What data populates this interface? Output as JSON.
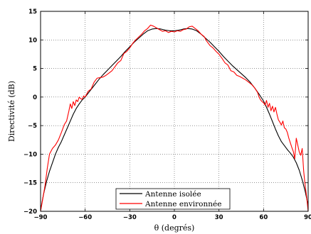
{
  "chart_data": {
    "type": "line",
    "xlabel": "θ (degrés)",
    "ylabel": "Directivité (dB)",
    "xlim": [
      -90,
      90
    ],
    "ylim": [
      -20,
      15
    ],
    "xticks": [
      -90,
      -60,
      -30,
      0,
      30,
      60,
      90
    ],
    "yticks": [
      -20,
      -15,
      -10,
      -5,
      0,
      5,
      10,
      15
    ],
    "grid": true,
    "legend_position": "bottom-center",
    "series": [
      {
        "name": "Antenne isolée",
        "color": "#000000",
        "x": [
          -90,
          -88,
          -86,
          -84,
          -82,
          -80,
          -78,
          -76,
          -74,
          -72,
          -70,
          -68,
          -66,
          -64,
          -62,
          -60,
          -57,
          -54,
          -51,
          -48,
          -45,
          -42,
          -39,
          -36,
          -33,
          -30,
          -27,
          -24,
          -21,
          -18,
          -15,
          -12,
          -9,
          -6,
          -3,
          0,
          3,
          6,
          9,
          12,
          15,
          18,
          21,
          24,
          27,
          30,
          33,
          36,
          39,
          42,
          45,
          48,
          51,
          54,
          57,
          60,
          62,
          64,
          66,
          68,
          70,
          72,
          74,
          76,
          78,
          80,
          82,
          84,
          86,
          88,
          90
        ],
        "y": [
          -19.8,
          -17.0,
          -14.8,
          -13.0,
          -11.5,
          -10.0,
          -8.8,
          -7.8,
          -6.6,
          -5.4,
          -4.2,
          -3.0,
          -2.0,
          -1.2,
          -0.5,
          0.0,
          1.0,
          2.0,
          3.0,
          3.9,
          4.7,
          5.5,
          6.3,
          7.1,
          8.0,
          8.8,
          9.6,
          10.3,
          11.0,
          11.6,
          11.9,
          12.0,
          11.9,
          11.7,
          11.6,
          11.6,
          11.7,
          11.9,
          12.0,
          11.9,
          11.6,
          11.0,
          10.3,
          9.6,
          8.8,
          8.0,
          7.1,
          6.3,
          5.5,
          4.8,
          4.1,
          3.4,
          2.6,
          1.6,
          0.5,
          -0.7,
          -1.8,
          -3.0,
          -4.3,
          -5.6,
          -6.8,
          -7.8,
          -8.5,
          -9.2,
          -9.8,
          -10.5,
          -11.5,
          -12.8,
          -14.5,
          -16.5,
          -19.0
        ]
      },
      {
        "name": "Antenne environnée",
        "color": "#ff0000",
        "x": [
          -90,
          -88.5,
          -87,
          -85.5,
          -84,
          -82,
          -80,
          -78,
          -76,
          -74,
          -72.5,
          -71,
          -70,
          -69,
          -68,
          -67,
          -66,
          -65,
          -64,
          -63,
          -62,
          -61,
          -60,
          -58,
          -56,
          -54,
          -52,
          -50,
          -48,
          -46,
          -44,
          -42,
          -40,
          -38,
          -36,
          -34,
          -32,
          -30,
          -28,
          -26,
          -24,
          -22,
          -20,
          -18,
          -16,
          -14,
          -12,
          -10,
          -8,
          -6,
          -4,
          -2,
          0,
          2,
          4,
          6,
          8,
          10,
          12,
          14,
          16,
          18,
          20,
          22,
          24,
          26,
          28,
          30,
          32,
          34,
          36,
          38,
          40,
          42,
          44,
          46,
          48,
          50,
          52,
          54,
          56,
          57,
          58,
          59,
          60,
          61,
          62,
          63,
          64,
          65,
          66,
          67,
          68,
          69,
          70,
          71,
          72,
          73,
          74,
          75,
          76,
          77,
          78,
          79,
          80,
          81,
          82,
          83,
          84,
          85,
          86,
          87,
          88,
          89,
          90
        ],
        "y": [
          -20.0,
          -17.8,
          -15.5,
          -12.5,
          -10.0,
          -9.0,
          -8.4,
          -7.5,
          -6.2,
          -4.8,
          -4.2,
          -2.5,
          -1.2,
          -2.0,
          -0.8,
          -1.5,
          -0.5,
          -0.8,
          0.0,
          -0.3,
          -0.4,
          0.2,
          0.0,
          1.0,
          1.4,
          2.6,
          3.3,
          3.4,
          3.5,
          3.8,
          4.2,
          4.6,
          5.3,
          6.0,
          6.4,
          7.6,
          8.0,
          8.6,
          9.4,
          10.0,
          10.5,
          11.0,
          11.6,
          12.0,
          12.6,
          12.4,
          12.1,
          11.8,
          11.5,
          11.6,
          11.3,
          11.5,
          11.4,
          11.6,
          11.5,
          11.8,
          11.9,
          12.3,
          12.4,
          12.0,
          11.6,
          11.0,
          10.6,
          9.7,
          9.0,
          8.6,
          8.0,
          7.5,
          6.8,
          6.0,
          5.6,
          4.6,
          4.4,
          3.8,
          3.6,
          3.3,
          3.0,
          2.6,
          2.2,
          1.6,
          0.8,
          0.0,
          -0.5,
          -0.8,
          -1.0,
          -1.4,
          -0.6,
          -1.8,
          -1.1,
          -2.4,
          -1.6,
          -2.6,
          -1.8,
          -3.0,
          -4.0,
          -4.4,
          -4.9,
          -4.2,
          -5.4,
          -5.6,
          -6.2,
          -7.2,
          -8.0,
          -8.8,
          -9.5,
          -10.8,
          -7.2,
          -8.4,
          -9.6,
          -10.2,
          -9.0,
          -13.0,
          -15.5,
          -17.5,
          -20.0
        ]
      }
    ]
  }
}
